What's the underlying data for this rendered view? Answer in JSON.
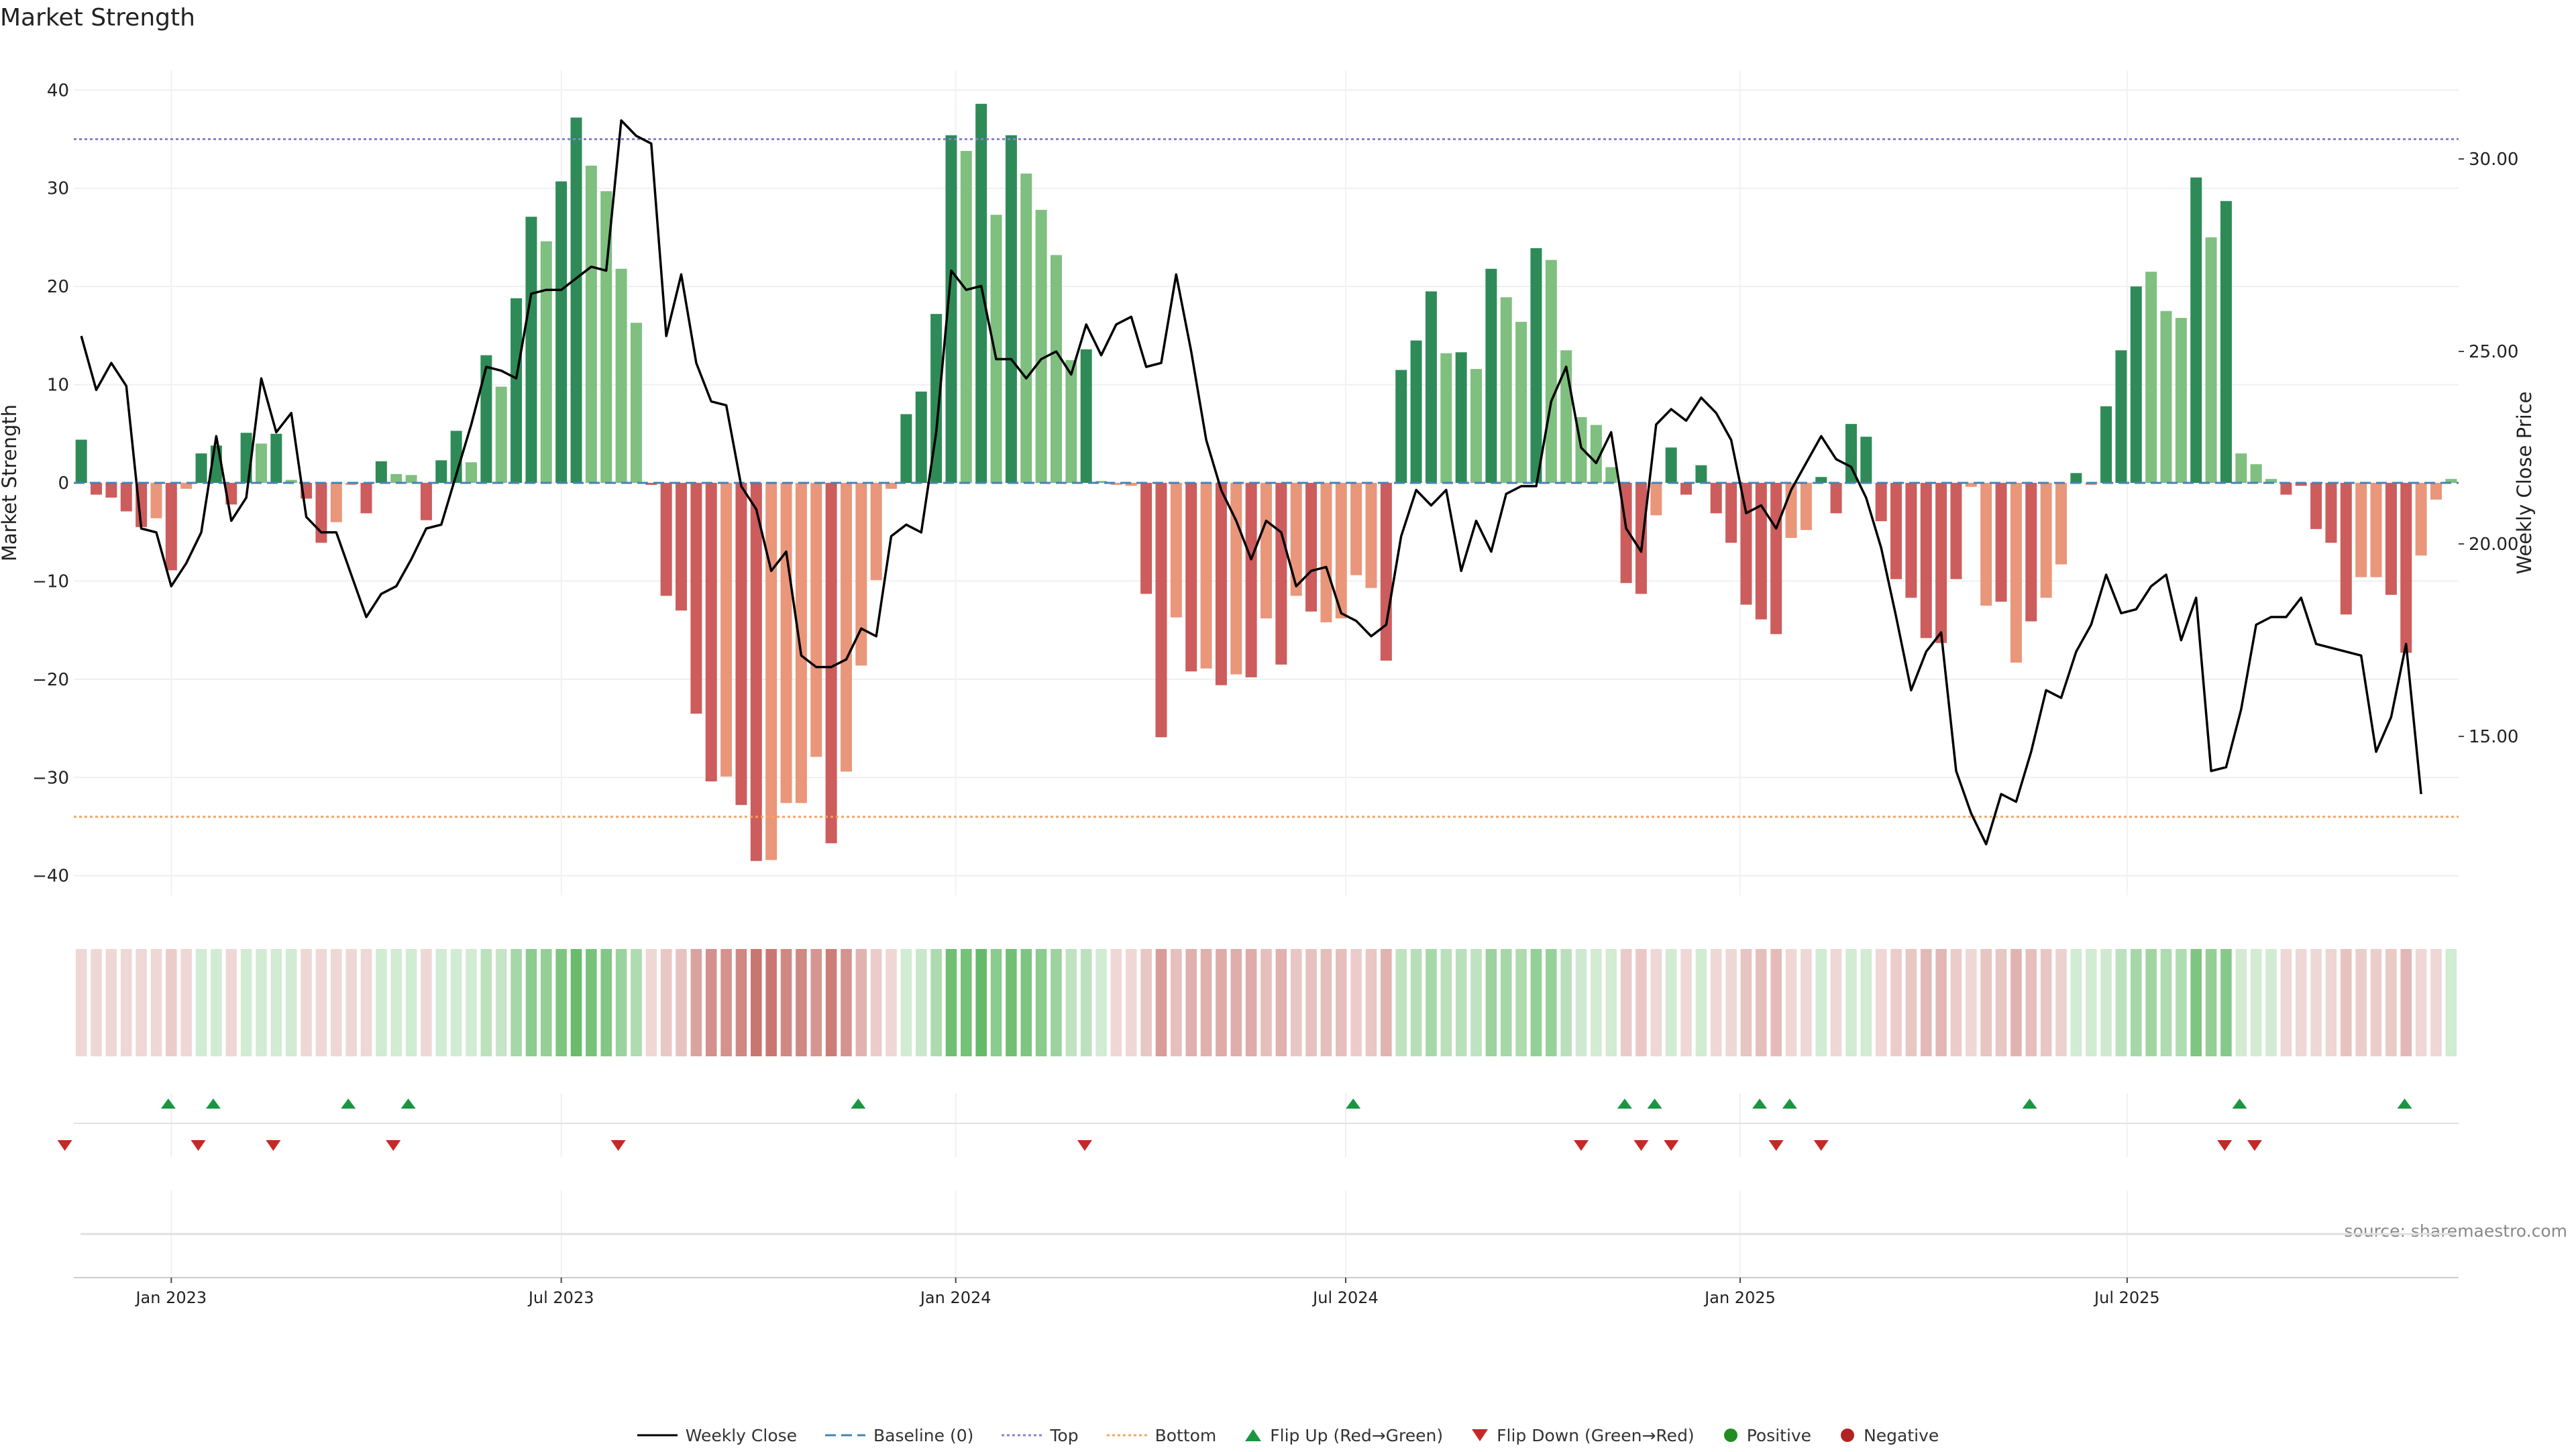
{
  "title": "Market Strength",
  "source": "source: sharemaestro.com",
  "colors": {
    "dark_green": "#2e8b57",
    "light_green": "#7fbf7f",
    "dark_red": "#cd5c5c",
    "light_red": "#e9967a",
    "line": "#000000",
    "baseline": "#4682b4",
    "top": "#8a7fd4",
    "bottom": "#f4a460",
    "flip_up": "#1a9641",
    "flip_down": "#c62828",
    "positive": "#228b22",
    "negative": "#b22222"
  },
  "legend": {
    "weekly_close": "Weekly Close",
    "baseline": "Baseline (0)",
    "top": "Top",
    "bottom": "Bottom",
    "flip_up": "Flip Up (Red→Green)",
    "flip_down": "Flip Down (Green→Red)",
    "positive": "Positive",
    "negative": "Negative"
  },
  "chart_data": {
    "type": "bar",
    "title": "Market Strength",
    "ylabel": "Market Strength",
    "y2label": "Weekly Close Price",
    "ylim": [
      -42,
      42
    ],
    "y2lim": [
      10.87,
      32.3
    ],
    "yticks": [
      40,
      30,
      20,
      10,
      0,
      -10,
      -20,
      -30,
      -40
    ],
    "y2ticks": [
      30,
      25,
      20,
      15
    ],
    "y2tick_labels": [
      "30.00",
      "25.00",
      "20.00",
      "15.00"
    ],
    "top_level": 35,
    "bottom_level": -34,
    "baseline_level": 0,
    "x_start_week": -6.5,
    "xticks": [
      {
        "label": "Jan 2023",
        "week": 0
      },
      {
        "label": "Jul 2023",
        "week": 26
      },
      {
        "label": "Jan 2024",
        "week": 52.3
      },
      {
        "label": "Jul 2024",
        "week": 78.3
      },
      {
        "label": "Jan 2025",
        "week": 104.6
      },
      {
        "label": "Jul 2025",
        "week": 130.4
      }
    ],
    "strength_values": [
      4.4,
      -1.2,
      -1.5,
      -2.9,
      -4.5,
      -3.6,
      -8.9,
      -0.6,
      3.0,
      3.8,
      -2.2,
      5.1,
      4.0,
      5.0,
      0.3,
      -1.6,
      -6.1,
      -4.0,
      -0.2,
      -3.1,
      2.2,
      0.9,
      0.8,
      -3.8,
      2.3,
      5.3,
      2.1,
      13.0,
      9.8,
      18.8,
      27.1,
      24.6,
      30.7,
      37.2,
      32.3,
      29.7,
      21.8,
      16.3,
      -0.2,
      -11.5,
      -13.0,
      -23.5,
      -30.4,
      -29.9,
      -32.8,
      -38.5,
      -38.4,
      -32.6,
      -32.6,
      -27.9,
      -36.7,
      -29.4,
      -18.6,
      -9.9,
      -0.6,
      7.0,
      9.3,
      17.2,
      35.4,
      33.8,
      38.6,
      27.3,
      35.4,
      31.5,
      27.8,
      23.2,
      12.5,
      13.6,
      0.2,
      -0.2,
      -0.3,
      -11.3,
      -25.9,
      -13.7,
      -19.2,
      -18.9,
      -20.6,
      -19.5,
      -19.8,
      -13.8,
      -18.5,
      -11.5,
      -13.1,
      -14.2,
      -13.8,
      -9.4,
      -10.7,
      -18.1,
      11.5,
      14.5,
      19.5,
      13.2,
      13.3,
      11.6,
      21.8,
      18.9,
      16.4,
      23.9,
      22.7,
      13.5,
      6.7,
      5.9,
      1.6,
      -10.2,
      -11.3,
      -3.3,
      3.6,
      -1.2,
      1.8,
      -3.1,
      -6.1,
      -12.4,
      -13.9,
      -15.4,
      -5.6,
      -4.8,
      0.6,
      -3.1,
      6.0,
      4.7,
      -3.9,
      -9.8,
      -11.7,
      -15.8,
      -16.3,
      -9.8,
      -0.4,
      -12.5,
      -12.1,
      -18.3,
      -14.1,
      -11.7,
      -8.3,
      1.0,
      -0.2,
      7.8,
      13.5,
      20.0,
      21.5,
      17.5,
      16.8,
      31.1,
      25.0,
      28.7,
      3.0,
      1.9,
      0.4,
      -1.2,
      -0.3,
      -4.7,
      -6.1,
      -13.4,
      -9.6,
      -9.6,
      -11.4,
      -17.3,
      -7.4,
      -1.7,
      0.4
    ],
    "strength_shade": [
      "dark",
      "dark",
      "dark",
      "dark",
      "dark",
      "light",
      "dark",
      "light",
      "dark",
      "dark",
      "dark",
      "dark",
      "light",
      "dark",
      "light",
      "dark",
      "dark",
      "light",
      "light",
      "dark",
      "dark",
      "light",
      "light",
      "dark",
      "dark",
      "dark",
      "light",
      "dark",
      "light",
      "dark",
      "dark",
      "light",
      "dark",
      "dark",
      "light",
      "light",
      "light",
      "light",
      "dark",
      "dark",
      "dark",
      "dark",
      "dark",
      "light",
      "dark",
      "dark",
      "light",
      "light",
      "light",
      "light",
      "dark",
      "light",
      "light",
      "light",
      "light",
      "dark",
      "dark",
      "dark",
      "dark",
      "light",
      "dark",
      "light",
      "dark",
      "light",
      "light",
      "light",
      "light",
      "dark",
      "light",
      "light",
      "light",
      "dark",
      "dark",
      "light",
      "dark",
      "light",
      "dark",
      "light",
      "dark",
      "light",
      "dark",
      "light",
      "dark",
      "light",
      "light",
      "light",
      "light",
      "dark",
      "dark",
      "dark",
      "dark",
      "light",
      "dark",
      "light",
      "dark",
      "light",
      "light",
      "dark",
      "light",
      "light",
      "light",
      "light",
      "light",
      "dark",
      "dark",
      "light",
      "dark",
      "dark",
      "dark",
      "dark",
      "dark",
      "dark",
      "dark",
      "dark",
      "light",
      "light",
      "dark",
      "dark",
      "dark",
      "dark",
      "dark",
      "dark",
      "dark",
      "dark",
      "dark",
      "dark",
      "light",
      "light",
      "dark",
      "light",
      "dark",
      "light",
      "light",
      "dark",
      "light",
      "dark",
      "dark",
      "dark",
      "light",
      "light",
      "light",
      "dark",
      "light",
      "dark",
      "light",
      "light",
      "light",
      "dark",
      "dark",
      "dark",
      "dark",
      "dark",
      "light",
      "light",
      "dark",
      "dark",
      "light",
      "light",
      "light",
      "light"
    ],
    "close_prices": [
      25.4,
      24.0,
      24.7,
      24.1,
      20.4,
      20.3,
      18.9,
      19.5,
      20.3,
      22.8,
      20.6,
      21.2,
      24.3,
      22.9,
      23.4,
      20.7,
      20.3,
      20.3,
      19.2,
      18.1,
      18.7,
      18.9,
      19.6,
      20.4,
      20.5,
      21.8,
      23.1,
      24.6,
      24.5,
      24.3,
      26.5,
      26.6,
      26.6,
      26.9,
      27.2,
      27.1,
      31.0,
      30.6,
      30.4,
      25.4,
      27.0,
      24.7,
      23.7,
      23.6,
      21.5,
      20.9,
      19.3,
      19.8,
      17.1,
      16.8,
      16.8,
      17.0,
      17.8,
      17.6,
      20.2,
      20.5,
      20.3,
      22.9,
      27.1,
      26.6,
      26.7,
      24.8,
      24.8,
      24.3,
      24.8,
      25.0,
      24.4,
      25.7,
      24.9,
      25.7,
      25.9,
      24.6,
      24.7,
      27.0,
      25.0,
      22.7,
      21.4,
      20.6,
      19.6,
      20.6,
      20.3,
      18.9,
      19.3,
      19.4,
      18.2,
      18.0,
      17.6,
      17.9,
      20.2,
      21.4,
      21.0,
      21.4,
      19.3,
      20.6,
      19.8,
      21.3,
      21.5,
      21.5,
      23.7,
      24.6,
      22.5,
      22.1,
      22.9,
      20.4,
      19.8,
      23.1,
      23.5,
      23.2,
      23.8,
      23.4,
      22.7,
      20.8,
      21.0,
      20.4,
      21.4,
      22.1,
      22.8,
      22.2,
      22.0,
      21.2,
      19.9,
      18.1,
      16.2,
      17.2,
      17.7,
      14.1,
      13.0,
      12.2,
      13.5,
      13.3,
      14.6,
      16.2,
      16.0,
      17.2,
      17.9,
      19.2,
      18.2,
      18.3,
      18.9,
      19.2,
      17.5,
      18.6,
      14.1,
      14.2,
      15.7,
      17.9,
      18.1,
      18.1,
      18.6,
      17.4,
      17.3,
      17.2,
      17.1,
      14.6,
      15.5,
      17.4,
      13.5
    ],
    "color_band": [
      {
        "trend": "red",
        "level": 0.25
      },
      {
        "trend": "red",
        "level": 0.25
      },
      {
        "trend": "red",
        "level": 0.25
      },
      {
        "trend": "red",
        "level": 0.25
      },
      {
        "trend": "red",
        "level": 0.25
      },
      {
        "trend": "red",
        "level": 0.25
      },
      {
        "trend": "red",
        "level": 0.32
      },
      {
        "trend": "red",
        "level": 0.25
      },
      {
        "trend": "green",
        "level": 0.25
      },
      {
        "trend": "green",
        "level": 0.25
      },
      {
        "trend": "red",
        "level": 0.25
      },
      {
        "trend": "green",
        "level": 0.25
      },
      {
        "trend": "green",
        "level": 0.25
      },
      {
        "trend": "green",
        "level": 0.25
      },
      {
        "trend": "green",
        "level": 0.25
      },
      {
        "trend": "red",
        "level": 0.25
      },
      {
        "trend": "red",
        "level": 0.25
      },
      {
        "trend": "red",
        "level": 0.25
      },
      {
        "trend": "red",
        "level": 0.25
      },
      {
        "trend": "red",
        "level": 0.25
      },
      {
        "trend": "green",
        "level": 0.25
      },
      {
        "trend": "green",
        "level": 0.25
      },
      {
        "trend": "green",
        "level": 0.25
      },
      {
        "trend": "red",
        "level": 0.25
      },
      {
        "trend": "green",
        "level": 0.25
      },
      {
        "trend": "green",
        "level": 0.25
      },
      {
        "trend": "green",
        "level": 0.25
      },
      {
        "trend": "green",
        "level": 0.38
      },
      {
        "trend": "green",
        "level": 0.32
      },
      {
        "trend": "green",
        "level": 0.5
      },
      {
        "trend": "green",
        "level": 0.64
      },
      {
        "trend": "green",
        "level": 0.6
      },
      {
        "trend": "green",
        "level": 0.72
      },
      {
        "trend": "green",
        "level": 0.84
      },
      {
        "trend": "green",
        "level": 0.76
      },
      {
        "trend": "green",
        "level": 0.7
      },
      {
        "trend": "green",
        "level": 0.56
      },
      {
        "trend": "green",
        "level": 0.45
      },
      {
        "trend": "red",
        "level": 0.25
      },
      {
        "trend": "red",
        "level": 0.35
      },
      {
        "trend": "red",
        "level": 0.38
      },
      {
        "trend": "red",
        "level": 0.58
      },
      {
        "trend": "red",
        "level": 0.7
      },
      {
        "trend": "red",
        "level": 0.69
      },
      {
        "trend": "red",
        "level": 0.75
      },
      {
        "trend": "red",
        "level": 0.86
      },
      {
        "trend": "red",
        "level": 0.86
      },
      {
        "trend": "red",
        "level": 0.75
      },
      {
        "trend": "red",
        "level": 0.75
      },
      {
        "trend": "red",
        "level": 0.66
      },
      {
        "trend": "red",
        "level": 0.82
      },
      {
        "trend": "red",
        "level": 0.68
      },
      {
        "trend": "red",
        "level": 0.48
      },
      {
        "trend": "red",
        "level": 0.32
      },
      {
        "trend": "red",
        "level": 0.25
      },
      {
        "trend": "green",
        "level": 0.25
      },
      {
        "trend": "green",
        "level": 0.3
      },
      {
        "trend": "green",
        "level": 0.46
      },
      {
        "trend": "green",
        "level": 0.8
      },
      {
        "trend": "green",
        "level": 0.77
      },
      {
        "trend": "green",
        "level": 0.86
      },
      {
        "trend": "green",
        "level": 0.65
      },
      {
        "trend": "green",
        "level": 0.8
      },
      {
        "trend": "green",
        "level": 0.72
      },
      {
        "trend": "green",
        "level": 0.65
      },
      {
        "trend": "green",
        "level": 0.56
      },
      {
        "trend": "green",
        "level": 0.36
      },
      {
        "trend": "green",
        "level": 0.38
      },
      {
        "trend": "green",
        "level": 0.25
      },
      {
        "trend": "red",
        "level": 0.25
      },
      {
        "trend": "red",
        "level": 0.25
      },
      {
        "trend": "red",
        "level": 0.36
      },
      {
        "trend": "red",
        "level": 0.62
      },
      {
        "trend": "red",
        "level": 0.4
      },
      {
        "trend": "red",
        "level": 0.5
      },
      {
        "trend": "red",
        "level": 0.5
      },
      {
        "trend": "red",
        "level": 0.53
      },
      {
        "trend": "red",
        "level": 0.51
      },
      {
        "trend": "red",
        "level": 0.52
      },
      {
        "trend": "red",
        "level": 0.4
      },
      {
        "trend": "red",
        "level": 0.49
      },
      {
        "trend": "red",
        "level": 0.36
      },
      {
        "trend": "red",
        "level": 0.39
      },
      {
        "trend": "red",
        "level": 0.41
      },
      {
        "trend": "red",
        "level": 0.4
      },
      {
        "trend": "red",
        "level": 0.32
      },
      {
        "trend": "red",
        "level": 0.35
      },
      {
        "trend": "red",
        "level": 0.48
      },
      {
        "trend": "green",
        "level": 0.36
      },
      {
        "trend": "green",
        "level": 0.41
      },
      {
        "trend": "green",
        "level": 0.5
      },
      {
        "trend": "green",
        "level": 0.39
      },
      {
        "trend": "green",
        "level": 0.39
      },
      {
        "trend": "green",
        "level": 0.36
      },
      {
        "trend": "green",
        "level": 0.56
      },
      {
        "trend": "green",
        "level": 0.5
      },
      {
        "trend": "green",
        "level": 0.45
      },
      {
        "trend": "green",
        "level": 0.6
      },
      {
        "trend": "green",
        "level": 0.58
      },
      {
        "trend": "green",
        "level": 0.39
      },
      {
        "trend": "green",
        "level": 0.27
      },
      {
        "trend": "green",
        "level": 0.25
      },
      {
        "trend": "green",
        "level": 0.25
      },
      {
        "trend": "red",
        "level": 0.33
      },
      {
        "trend": "red",
        "level": 0.35
      },
      {
        "trend": "red",
        "level": 0.25
      },
      {
        "trend": "green",
        "level": 0.25
      },
      {
        "trend": "red",
        "level": 0.25
      },
      {
        "trend": "green",
        "level": 0.25
      },
      {
        "trend": "red",
        "level": 0.25
      },
      {
        "trend": "red",
        "level": 0.25
      },
      {
        "trend": "red",
        "level": 0.37
      },
      {
        "trend": "red",
        "level": 0.4
      },
      {
        "trend": "red",
        "level": 0.43
      },
      {
        "trend": "red",
        "level": 0.25
      },
      {
        "trend": "red",
        "level": 0.25
      },
      {
        "trend": "green",
        "level": 0.25
      },
      {
        "trend": "red",
        "level": 0.25
      },
      {
        "trend": "green",
        "level": 0.25
      },
      {
        "trend": "green",
        "level": 0.25
      },
      {
        "trend": "red",
        "level": 0.25
      },
      {
        "trend": "red",
        "level": 0.32
      },
      {
        "trend": "red",
        "level": 0.36
      },
      {
        "trend": "red",
        "level": 0.44
      },
      {
        "trend": "red",
        "level": 0.45
      },
      {
        "trend": "red",
        "level": 0.32
      },
      {
        "trend": "red",
        "level": 0.25
      },
      {
        "trend": "red",
        "level": 0.37
      },
      {
        "trend": "red",
        "level": 0.36
      },
      {
        "trend": "red",
        "level": 0.48
      },
      {
        "trend": "red",
        "level": 0.4
      },
      {
        "trend": "red",
        "level": 0.36
      },
      {
        "trend": "red",
        "level": 0.29
      },
      {
        "trend": "green",
        "level": 0.25
      },
      {
        "trend": "green",
        "level": 0.25
      },
      {
        "trend": "green",
        "level": 0.27
      },
      {
        "trend": "green",
        "level": 0.38
      },
      {
        "trend": "green",
        "level": 0.5
      },
      {
        "trend": "green",
        "level": 0.53
      },
      {
        "trend": "green",
        "level": 0.45
      },
      {
        "trend": "green",
        "level": 0.44
      },
      {
        "trend": "green",
        "level": 0.72
      },
      {
        "trend": "green",
        "level": 0.6
      },
      {
        "trend": "green",
        "level": 0.67
      },
      {
        "trend": "green",
        "level": 0.25
      },
      {
        "trend": "green",
        "level": 0.25
      },
      {
        "trend": "green",
        "level": 0.25
      },
      {
        "trend": "red",
        "level": 0.25
      },
      {
        "trend": "red",
        "level": 0.25
      },
      {
        "trend": "red",
        "level": 0.25
      },
      {
        "trend": "red",
        "level": 0.27
      },
      {
        "trend": "red",
        "level": 0.38
      },
      {
        "trend": "red",
        "level": 0.31
      },
      {
        "trend": "red",
        "level": 0.31
      },
      {
        "trend": "red",
        "level": 0.34
      },
      {
        "trend": "red",
        "level": 0.45
      },
      {
        "trend": "red",
        "level": 0.25
      },
      {
        "trend": "red",
        "level": 0.25
      },
      {
        "trend": "green",
        "level": 0.25
      }
    ],
    "flip_up_weeks": [
      -0.2,
      2.8,
      11.8,
      15.8,
      45.8,
      78.8,
      96.9,
      98.9,
      105.9,
      107.9,
      123.9,
      137.9,
      148.9
    ],
    "flip_down_weeks": [
      -7.1,
      1.8,
      6.8,
      14.8,
      29.8,
      60.9,
      94.0,
      98.0,
      100.0,
      107.0,
      110.0,
      136.9,
      138.9
    ]
  }
}
